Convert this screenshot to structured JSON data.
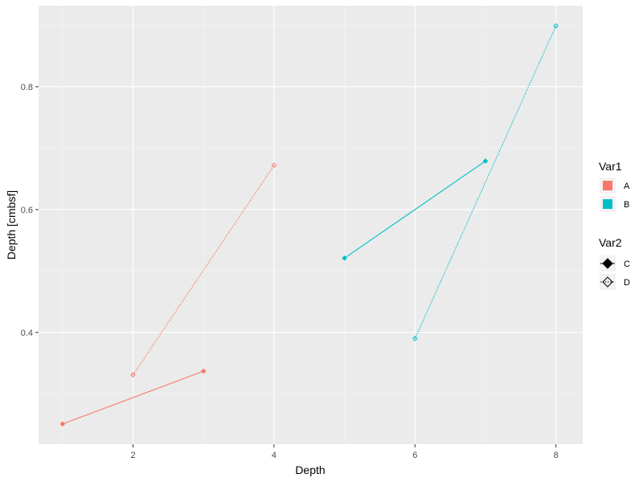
{
  "chart_data": {
    "type": "line",
    "title": "",
    "xlabel": "Depth",
    "ylabel": "Depth [cmbsf]",
    "xlim": [
      0.66,
      8.38
    ],
    "ylim": [
      0.218,
      0.932
    ],
    "x_ticks": [
      2,
      4,
      6,
      8
    ],
    "x_tick_labels": [
      "2",
      "4",
      "6",
      "8"
    ],
    "y_ticks": [
      0.4,
      0.6,
      0.8
    ],
    "y_tick_labels": [
      "0.4",
      "0.6",
      "0.8"
    ],
    "grid": true,
    "legend_position": "right",
    "series": [
      {
        "name": "A / C",
        "var1": "A",
        "var2": "C",
        "color": "#F8766D",
        "linetype": "solid",
        "shape": "filled-diamond",
        "x": [
          1,
          3
        ],
        "y": [
          0.251,
          0.337
        ]
      },
      {
        "name": "A / D",
        "var1": "A",
        "var2": "D",
        "color": "#F8766D",
        "linetype": "dotted",
        "shape": "open-diamond",
        "x": [
          2,
          4
        ],
        "y": [
          0.331,
          0.672
        ]
      },
      {
        "name": "B / C",
        "var1": "B",
        "var2": "C",
        "color": "#00BFC4",
        "linetype": "solid",
        "shape": "filled-diamond",
        "x": [
          5,
          7
        ],
        "y": [
          0.521,
          0.679
        ]
      },
      {
        "name": "B / D",
        "var1": "B",
        "var2": "D",
        "color": "#00BFC4",
        "linetype": "dotted",
        "shape": "open-diamond",
        "x": [
          6,
          8
        ],
        "y": [
          0.39,
          0.899
        ]
      }
    ],
    "legends": [
      {
        "title": "Var1",
        "items": [
          {
            "label": "A",
            "color": "#F8766D"
          },
          {
            "label": "B",
            "color": "#00BFC4"
          }
        ]
      },
      {
        "title": "Var2",
        "items": [
          {
            "label": "C",
            "linetype": "solid",
            "shape": "filled-diamond"
          },
          {
            "label": "D",
            "linetype": "dotted",
            "shape": "open-diamond"
          }
        ]
      }
    ]
  },
  "colors": {
    "panel_bg": "#EBEBEB",
    "grid_major": "#FFFFFF",
    "grid_minor": "#F5F5F5",
    "tick_text": "#4D4D4D",
    "series_A": "#F8766D",
    "series_B": "#00BFC4"
  }
}
